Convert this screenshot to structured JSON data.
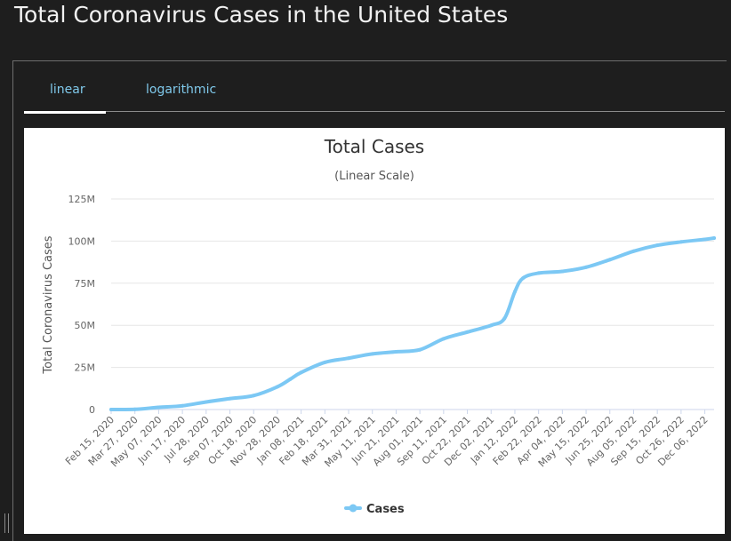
{
  "page": {
    "title": "Total Coronavirus Cases in the United States"
  },
  "tabs": [
    {
      "label": "linear",
      "active": true
    },
    {
      "label": "logarithmic",
      "active": false
    }
  ],
  "colors": {
    "background": "#1e1e1e",
    "tab_text": "#7fc8ea",
    "series": "#7cc8f4",
    "chart_background": "#ffffff"
  },
  "chart_data": {
    "type": "line",
    "title": "Total Cases",
    "subtitle": "(Linear Scale)",
    "ylabel": "Total Coronavirus Cases",
    "xlabel": "",
    "ylim": [
      0,
      125000000
    ],
    "y_ticks": [
      0,
      25000000,
      50000000,
      75000000,
      100000000,
      125000000
    ],
    "y_tick_labels": [
      "0",
      "25M",
      "50M",
      "75M",
      "100M",
      "125M"
    ],
    "grid": true,
    "legend": "bottom-center",
    "x_tick_labels": [
      "Feb 15, 2020",
      "Mar 27, 2020",
      "May 07, 2020",
      "Jun 17, 2020",
      "Jul 28, 2020",
      "Sep 07, 2020",
      "Oct 18, 2020",
      "Nov 28, 2020",
      "Jan 08, 2021",
      "Feb 18, 2021",
      "Mar 31, 2021",
      "May 11, 2021",
      "Jun 21, 2021",
      "Aug 01, 2021",
      "Sep 11, 2021",
      "Oct 22, 2021",
      "Dec 02, 2021",
      "Jan 12, 2022",
      "Feb 22, 2022",
      "Apr 04, 2022",
      "May 15, 2022",
      "Jun 25, 2022",
      "Aug 05, 2022",
      "Sep 15, 2022",
      "Oct 26, 2022",
      "Dec 06, 2022"
    ],
    "series": [
      {
        "name": "Cases",
        "x": [
          "Feb 15, 2020",
          "Mar 27, 2020",
          "May 07, 2020",
          "Jun 17, 2020",
          "Jul 28, 2020",
          "Sep 07, 2020",
          "Oct 18, 2020",
          "Nov 28, 2020",
          "Dec 20, 2020",
          "Jan 08, 2021",
          "Feb 18, 2021",
          "Mar 31, 2021",
          "May 11, 2021",
          "Jun 21, 2021",
          "Aug 01, 2021",
          "Sep 11, 2021",
          "Oct 22, 2021",
          "Dec 02, 2021",
          "Dec 25, 2021",
          "Jan 12, 2022",
          "Jan 26, 2022",
          "Feb 22, 2022",
          "Apr 04, 2022",
          "May 15, 2022",
          "Jun 25, 2022",
          "Aug 05, 2022",
          "Sep 15, 2022",
          "Oct 26, 2022",
          "Dec 06, 2022",
          "Dec 22, 2022"
        ],
        "values": [
          0,
          100000,
          1300000,
          2200000,
          4500000,
          6500000,
          8300000,
          13500000,
          18000000,
          22000000,
          28000000,
          30500000,
          33000000,
          34300000,
          35500000,
          42000000,
          46000000,
          50000000,
          54000000,
          70000000,
          78000000,
          81000000,
          82000000,
          84500000,
          89000000,
          94000000,
          97500000,
          99500000,
          101000000,
          101800000
        ]
      }
    ]
  }
}
